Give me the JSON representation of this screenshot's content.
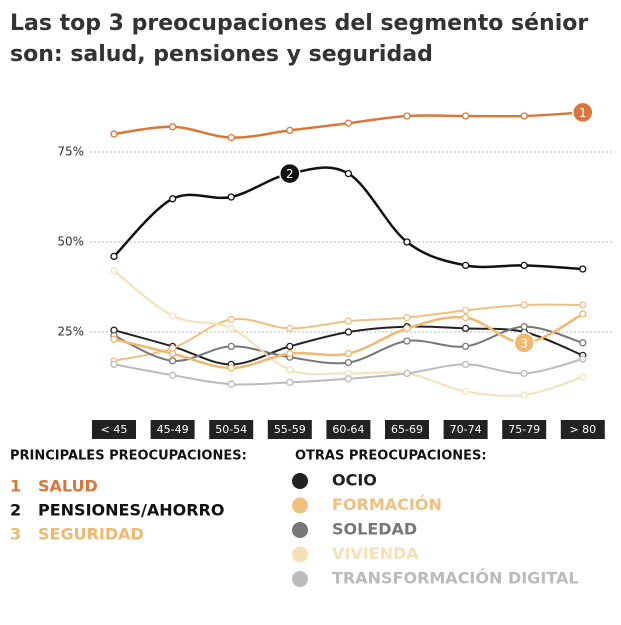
{
  "chart_data": {
    "type": "line",
    "title": "Las top 3 preocupaciones del segmento sénior son: salud, pensiones y seguridad",
    "categories": [
      "< 45",
      "45-49",
      "50-54",
      "55-59",
      "60-64",
      "65-69",
      "70-74",
      "75-79",
      "> 80"
    ],
    "ylim": [
      0,
      90
    ],
    "yticks": [
      {
        "value": 25,
        "label": "25%"
      },
      {
        "value": 50,
        "label": "50%"
      },
      {
        "value": 75,
        "label": "75%"
      }
    ],
    "grid": true,
    "legend_titles": [
      "PRINCIPALES PREOCUPACIONES:",
      "OTRAS PREOCUPACIONES:"
    ],
    "series": [
      {
        "name": "OCIO",
        "color": "#222222",
        "values": [
          25.5,
          21,
          16,
          21,
          25,
          26.5,
          26,
          25,
          18.5
        ]
      },
      {
        "name": "FORMACIÓN",
        "color": "#f0c080",
        "values": [
          17,
          20.5,
          28.5,
          26,
          28,
          29,
          31,
          32.5,
          32.5
        ]
      },
      {
        "name": "SOLEDAD",
        "color": "#777777",
        "values": [
          24,
          17,
          21,
          18,
          16.5,
          22.5,
          21,
          26.5,
          22
        ]
      },
      {
        "name": "VIVIENDA",
        "color": "#f7dfb8",
        "values": [
          42,
          29.5,
          26,
          14.5,
          13.5,
          13.5,
          8.5,
          7.5,
          12.5
        ]
      },
      {
        "name": "TRANSFORMACIÓN DIGITAL",
        "color": "#bbbbbb",
        "values": [
          16,
          13,
          10.5,
          11,
          12,
          13.5,
          16,
          13.5,
          17.5
        ]
      },
      {
        "name": "SEGURIDAD",
        "rank": "3",
        "marker_index": 7,
        "color": "#f0b870",
        "values": [
          23,
          19,
          15,
          19,
          19,
          26,
          29,
          22,
          30
        ]
      },
      {
        "name": "PENSIONES/AHORRO",
        "rank": "2",
        "marker_index": 3,
        "color": "#111111",
        "values": [
          46,
          62,
          62.5,
          69,
          69,
          50,
          43.5,
          43.5,
          42.5
        ]
      },
      {
        "name": "SALUD",
        "rank": "1",
        "marker_index": 8,
        "color": "#d9773b",
        "values": [
          80,
          82,
          79,
          81,
          83,
          85,
          85,
          85,
          86
        ]
      }
    ]
  }
}
